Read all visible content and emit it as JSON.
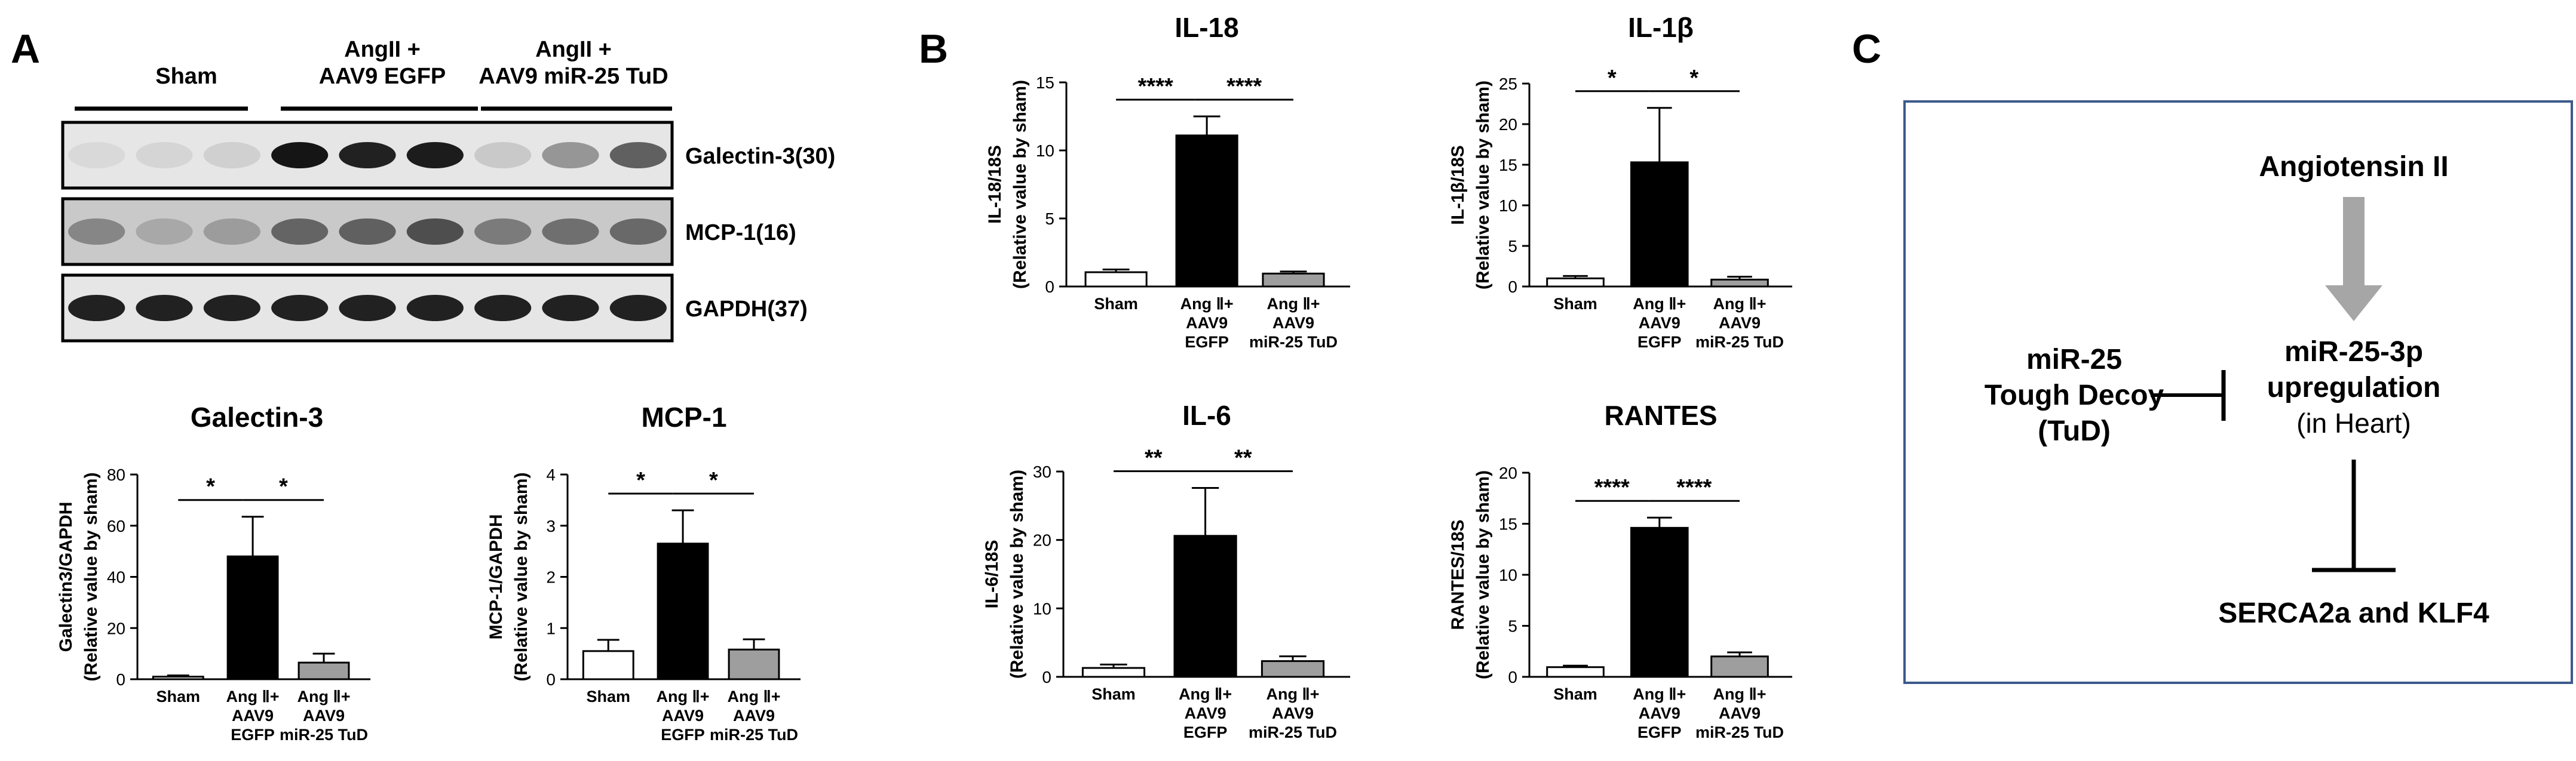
{
  "panel_labels": {
    "a": "A",
    "b": "B",
    "c": "C"
  },
  "blot": {
    "groups": [
      {
        "label_lines": [
          "Sham"
        ]
      },
      {
        "label_lines": [
          "AngII +",
          "AAV9 EGFP"
        ]
      },
      {
        "label_lines": [
          "AngII +",
          "AAV9 miR-25 TuD"
        ]
      }
    ],
    "bands": [
      {
        "label": "Galectin-3(30)",
        "intensities": [
          0.08,
          0.1,
          0.12,
          0.95,
          0.9,
          0.92,
          0.15,
          0.38,
          0.62
        ]
      },
      {
        "label": "MCP-1(16)",
        "intensities": [
          0.45,
          0.3,
          0.35,
          0.6,
          0.62,
          0.7,
          0.5,
          0.55,
          0.58
        ]
      },
      {
        "label": "GAPDH(37)",
        "intensities": [
          0.9,
          0.9,
          0.9,
          0.9,
          0.9,
          0.9,
          0.9,
          0.9,
          0.9
        ]
      }
    ]
  },
  "category_labels": {
    "sham": [
      "Sham"
    ],
    "angii_egfp": [
      "Ang Ⅱ+",
      "AAV9",
      "EGFP"
    ],
    "angii_tud": [
      "Ang Ⅱ+",
      "AAV9",
      "miR-25 TuD"
    ]
  },
  "chart_data": [
    {
      "type": "bar",
      "title": "Galectin-3",
      "ylabel_lines": [
        "Galectin3/GAPDH",
        "(Relative value by sham)"
      ],
      "categories": [
        "Sham",
        "Ang Ⅱ+ AAV9 EGFP",
        "Ang Ⅱ+ AAV9 miR-25 TuD"
      ],
      "values": [
        1,
        48,
        6.5
      ],
      "errors": [
        0.5,
        15.5,
        3.5
      ],
      "ylim": [
        0,
        80
      ],
      "yticks": [
        0,
        20,
        40,
        60,
        80
      ],
      "bar_colors": [
        "#ffffff",
        "#000000",
        "#9e9e9e"
      ],
      "significance": [
        "*",
        "*"
      ]
    },
    {
      "type": "bar",
      "title": "MCP-1",
      "ylabel_lines": [
        "MCP-1/GAPDH",
        "(Relative value by sham)"
      ],
      "categories": [
        "Sham",
        "Ang Ⅱ+ AAV9 EGFP",
        "Ang Ⅱ+ AAV9 miR-25 TuD"
      ],
      "values": [
        0.55,
        2.65,
        0.58
      ],
      "errors": [
        0.22,
        0.65,
        0.2
      ],
      "ylim": [
        0,
        4
      ],
      "yticks": [
        0,
        1,
        2,
        3,
        4
      ],
      "bar_colors": [
        "#ffffff",
        "#000000",
        "#9e9e9e"
      ],
      "significance": [
        "*",
        "*"
      ]
    },
    {
      "type": "bar",
      "title": "IL-18",
      "ylabel_lines": [
        "IL-18/18S",
        "(Relative value by sham)"
      ],
      "categories": [
        "Sham",
        "Ang Ⅱ+ AAV9 EGFP",
        "Ang Ⅱ+ AAV9 miR-25 TuD"
      ],
      "values": [
        1.05,
        11.1,
        0.95
      ],
      "errors": [
        0.2,
        1.4,
        0.15
      ],
      "ylim": [
        0,
        15
      ],
      "yticks": [
        0,
        5,
        10,
        15
      ],
      "bar_colors": [
        "#ffffff",
        "#000000",
        "#9e9e9e"
      ],
      "significance": [
        "****",
        "****"
      ]
    },
    {
      "type": "bar",
      "title": "IL-1β",
      "ylabel_lines": [
        "IL-1β/18S",
        "(Relative value by sham)"
      ],
      "categories": [
        "Sham",
        "Ang Ⅱ+ AAV9 EGFP",
        "Ang Ⅱ+ AAV9 miR-25 TuD"
      ],
      "values": [
        1,
        15.3,
        0.85
      ],
      "errors": [
        0.3,
        6.7,
        0.35
      ],
      "ylim": [
        0,
        25
      ],
      "yticks": [
        0,
        5,
        10,
        15,
        20,
        25
      ],
      "bar_colors": [
        "#ffffff",
        "#000000",
        "#9e9e9e"
      ],
      "significance": [
        "*",
        "*"
      ]
    },
    {
      "type": "bar",
      "title": "IL-6",
      "ylabel_lines": [
        "IL-6/18S",
        "(Relative value by sham)"
      ],
      "categories": [
        "Sham",
        "Ang Ⅱ+ AAV9 EGFP",
        "Ang Ⅱ+ AAV9 miR-25 TuD"
      ],
      "values": [
        1.3,
        20.6,
        2.3
      ],
      "errors": [
        0.5,
        7.0,
        0.7
      ],
      "ylim": [
        0,
        30
      ],
      "yticks": [
        0,
        10,
        20,
        30
      ],
      "bar_colors": [
        "#ffffff",
        "#000000",
        "#9e9e9e"
      ],
      "significance": [
        "**",
        "**"
      ]
    },
    {
      "type": "bar",
      "title": "RANTES",
      "ylabel_lines": [
        "RANTES/18S",
        "(Relative value by sham)"
      ],
      "categories": [
        "Sham",
        "Ang Ⅱ+ AAV9 EGFP",
        "Ang Ⅱ+ AAV9 miR-25 TuD"
      ],
      "values": [
        0.95,
        14.6,
        2.0
      ],
      "errors": [
        0.15,
        1.0,
        0.4
      ],
      "ylim": [
        0,
        20
      ],
      "yticks": [
        0,
        5,
        10,
        15,
        20
      ],
      "bar_colors": [
        "#ffffff",
        "#000000",
        "#9e9e9e"
      ],
      "significance": [
        "****",
        "****"
      ]
    }
  ],
  "diagram": {
    "top_node": "Angiotensin II",
    "center_lines": [
      "miR-25-3p",
      "upregulation",
      "(in Heart)"
    ],
    "left_lines": [
      "miR-25",
      "Tough Decoy",
      "(TuD)"
    ],
    "bottom_node": "SERCA2a and KLF4",
    "box_color": "#3c5a8c",
    "arrow_color": "#a6a6a6"
  }
}
